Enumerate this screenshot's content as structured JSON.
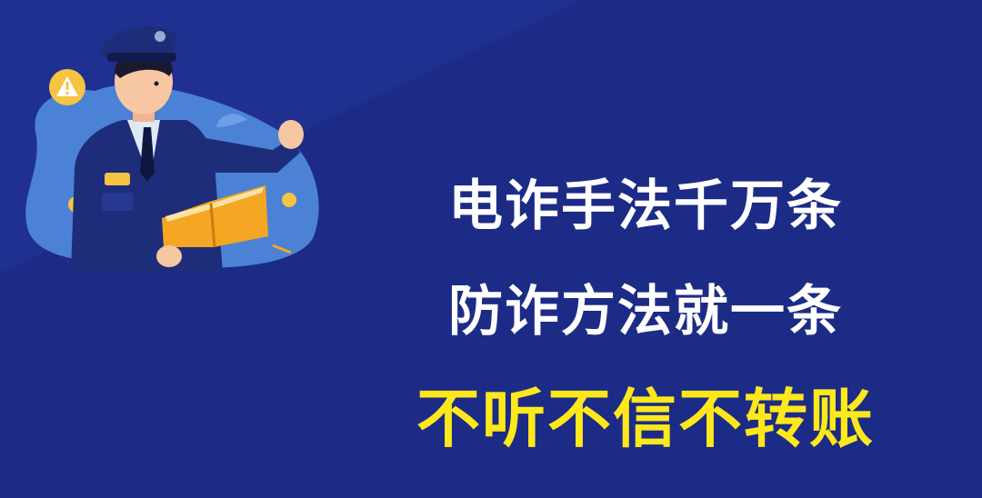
{
  "colors": {
    "background": "#1c2b86",
    "slogan_white": "#ffffff",
    "slogan_yellow": "#ffe81a",
    "uniform": "#1e2d7a",
    "book": "#f5a623",
    "warning_badge": "#f6c343"
  },
  "slogan": {
    "line1": "电诈手法千万条",
    "line2": "防诈方法就一条",
    "line3": "不听不信不转账"
  },
  "icons": {
    "warning": "warning-icon",
    "police": "police-officer-icon",
    "book": "open-book-icon"
  }
}
